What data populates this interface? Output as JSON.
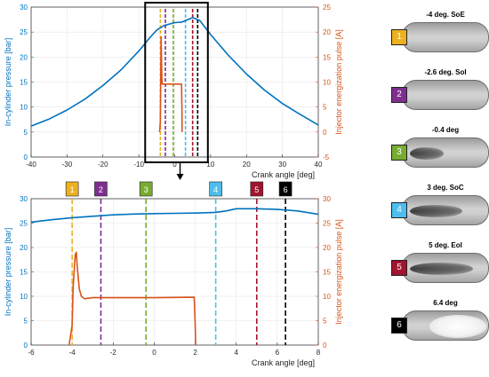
{
  "colors": {
    "pressure": "#0072BD",
    "pulse": "#D95319",
    "SoE": "#EDB120",
    "SoI": "#7E2F8E",
    "minus04": "#77AC30",
    "SoC": "#4DBEEE",
    "EoI": "#A2142F",
    "plus64": "#000000"
  },
  "chart_data": [
    {
      "type": "line",
      "xlabel": "Crank angle [deg]",
      "ylabel_left": "In-cylinder pressure [bar]",
      "ylabel_right": "Injector energization pulse [A]",
      "xlim": [
        -40,
        40
      ],
      "ylim_left": [
        0,
        30
      ],
      "ylim_right": [
        -5,
        25
      ],
      "xticks": [
        "-40",
        "-30",
        "-20",
        "-10",
        "0",
        "10",
        "20",
        "30",
        "40"
      ],
      "yticks_left": [
        "0",
        "5",
        "10",
        "15",
        "20",
        "25",
        "30"
      ],
      "yticks_right": [
        "-5",
        "0",
        "5",
        "10",
        "15",
        "20",
        "25"
      ],
      "grid": true,
      "series": [
        {
          "axis": "left",
          "color": "pressure",
          "x": [
            -40,
            -35,
            -30,
            -25,
            -20,
            -15,
            -10,
            -7,
            -5,
            -3,
            0,
            2,
            4,
            5,
            7,
            10,
            15,
            20,
            25,
            30,
            35,
            40
          ],
          "y": [
            6.2,
            7.6,
            9.4,
            11.6,
            14.3,
            17.4,
            21.2,
            23.8,
            25.4,
            26.3,
            26.9,
            27.0,
            27.6,
            27.9,
            27.3,
            24.5,
            20.3,
            16.6,
            13.4,
            10.7,
            8.5,
            6.4
          ]
        },
        {
          "axis": "right",
          "color": "pulse",
          "x": [
            -4.2,
            -4.0,
            -3.95,
            -3.85,
            -3.8,
            -3.7,
            -3.6,
            -3.5,
            -3.2,
            0,
            1.9,
            2.0,
            2.05
          ],
          "y": [
            0.0,
            2.0,
            7.5,
            15.0,
            19.0,
            15.0,
            11.0,
            9.6,
            9.6,
            9.6,
            9.6,
            5.0,
            0.0
          ]
        }
      ],
      "events": [
        {
          "x": -4,
          "color": "SoE"
        },
        {
          "x": -2.6,
          "color": "SoI"
        },
        {
          "x": -0.4,
          "color": "minus04"
        },
        {
          "x": 3,
          "color": "SoC"
        },
        {
          "x": 5,
          "color": "EoI"
        },
        {
          "x": 6.4,
          "color": "plus64"
        }
      ],
      "zoom_window": [
        -6,
        8
      ]
    },
    {
      "type": "line",
      "xlabel": "Crank angle [deg]",
      "ylabel_left": "In-cylinder pressure [bar]",
      "ylabel_right": "Injector energization pulse [A]",
      "xlim": [
        -6,
        8
      ],
      "ylim_left": [
        0,
        30
      ],
      "ylim_right": [
        0,
        30
      ],
      "xticks": [
        "-6",
        "-4",
        "-2",
        "0",
        "2",
        "4",
        "6",
        "8"
      ],
      "yticks_left": [
        "0",
        "5",
        "10",
        "15",
        "20",
        "25",
        "30"
      ],
      "yticks_right": [
        "0",
        "5",
        "10",
        "15",
        "20",
        "25",
        "30"
      ],
      "grid": true,
      "series": [
        {
          "axis": "left",
          "color": "pressure",
          "x": [
            -6,
            -5,
            -4,
            -3,
            -2,
            -1,
            0,
            1,
            2,
            3,
            3.5,
            4,
            5,
            6,
            7,
            8
          ],
          "y": [
            25.2,
            25.7,
            26.1,
            26.4,
            26.7,
            26.85,
            26.95,
            27.0,
            27.05,
            27.2,
            27.5,
            27.95,
            27.95,
            27.8,
            27.5,
            26.8
          ]
        },
        {
          "axis": "right",
          "color": "pulse",
          "x": [
            -4.15,
            -4.0,
            -3.95,
            -3.85,
            -3.8,
            -3.75,
            -3.65,
            -3.55,
            -3.4,
            -3.0,
            0,
            1.95,
            2.0,
            2.02
          ],
          "y": [
            0.0,
            4.0,
            12.0,
            18.5,
            19.0,
            16.0,
            11.5,
            10.0,
            9.5,
            9.7,
            9.7,
            9.8,
            4.0,
            0.0
          ]
        }
      ],
      "events": [
        {
          "x": -4,
          "color": "SoE",
          "label": "1"
        },
        {
          "x": -2.6,
          "color": "SoI",
          "label": "2"
        },
        {
          "x": -0.4,
          "color": "minus04",
          "label": "3"
        },
        {
          "x": 3,
          "color": "SoC",
          "label": "4"
        },
        {
          "x": 5,
          "color": "EoI",
          "label": "5"
        },
        {
          "x": 6.4,
          "color": "plus64",
          "label": "6"
        }
      ]
    }
  ],
  "frames": [
    {
      "label": "1",
      "title": "-4 deg. SoE",
      "color": "SoE",
      "spray": 0
    },
    {
      "label": "2",
      "title": "-2.6 deg. SoI",
      "color": "SoI",
      "spray": 0
    },
    {
      "label": "3",
      "title": "-0.4 deg",
      "color": "minus04",
      "spray": 0.45
    },
    {
      "label": "4",
      "title": "3 deg. SoC",
      "color": "SoC",
      "spray": 0.7
    },
    {
      "label": "5",
      "title": "5 deg. EoI",
      "color": "EoI",
      "spray": 0.85
    },
    {
      "label": "6",
      "title": "6.4 deg",
      "color": "plus64",
      "spray": 1.0
    }
  ]
}
